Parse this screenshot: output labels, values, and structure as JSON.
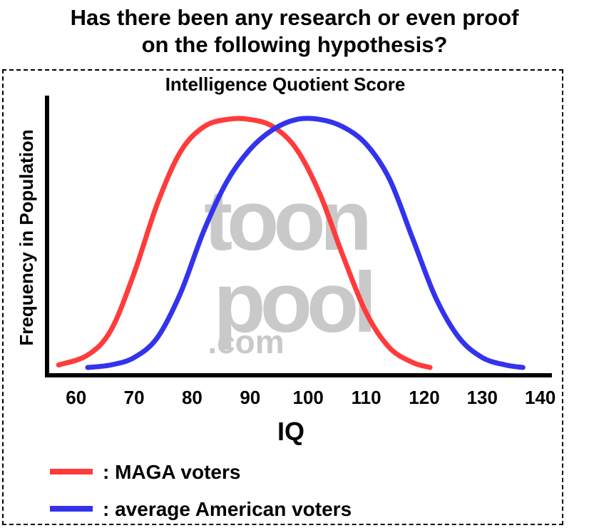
{
  "headline": {
    "line1": "Has there been any research or even proof",
    "line2": "on the following hypothesis?"
  },
  "watermark": {
    "line1": "toon",
    "line2": "pool",
    "line3": ".com"
  },
  "legend": [
    {
      "text": ": MAGA voters",
      "color": "#ff3b3b"
    },
    {
      "text": ": average American voters",
      "color": "#3333ee"
    }
  ],
  "chart_data": {
    "type": "line",
    "title": "Intelligence Quotient Score",
    "xlabel": "IQ",
    "ylabel": "Frequency in Population",
    "xlim": [
      55,
      142
    ],
    "ylim": [
      0,
      1.05
    ],
    "x_ticks": [
      60,
      70,
      80,
      90,
      100,
      110,
      120,
      130,
      140
    ],
    "grid": false,
    "series": [
      {
        "name": "MAGA voters",
        "color": "#ff3b3b",
        "x": [
          57,
          62,
          66,
          70,
          74,
          78,
          82,
          86,
          90,
          94,
          98,
          102,
          106,
          110,
          114,
          118,
          121
        ],
        "y": [
          0.01,
          0.05,
          0.15,
          0.38,
          0.66,
          0.87,
          0.97,
          1.0,
          1.0,
          0.97,
          0.88,
          0.7,
          0.45,
          0.22,
          0.08,
          0.02,
          0.0
        ]
      },
      {
        "name": "average American voters",
        "color": "#3333ee",
        "x": [
          62,
          66,
          70,
          74,
          78,
          82,
          86,
          90,
          94,
          98,
          102,
          106,
          110,
          114,
          118,
          122,
          126,
          130,
          134,
          137
        ],
        "y": [
          0.0,
          0.01,
          0.04,
          0.12,
          0.3,
          0.55,
          0.75,
          0.88,
          0.96,
          1.0,
          1.0,
          0.97,
          0.9,
          0.76,
          0.52,
          0.28,
          0.12,
          0.04,
          0.01,
          0.0
        ]
      }
    ]
  }
}
